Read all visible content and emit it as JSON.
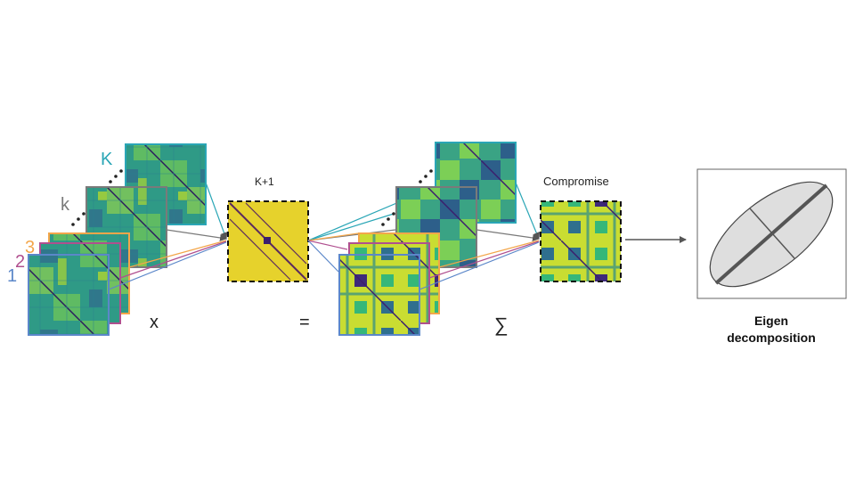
{
  "labels": {
    "index_1": "1",
    "index_2": "2",
    "index_3": "3",
    "index_k": "k",
    "index_K": "K",
    "weights_title": "K+1",
    "times_sign": "x",
    "equals_sign": "=",
    "sum_sign": "∑",
    "compromise_title": "Compromise",
    "eigen_line1": "Eigen",
    "eigen_line2": "decomposition"
  },
  "colors": {
    "stack_1": "#5b87c9",
    "stack_2": "#b04f8f",
    "stack_3": "#f3a64a",
    "stack_k": "#7a7a7a",
    "stack_K": "#2aa6b6",
    "weights_fill": "#e6d22c",
    "heat_low": "#3b2a73",
    "heat_mid": "#2a8c8a",
    "heat_high": "#d9df3a"
  },
  "icons": {
    "arrow": "right-arrow-icon",
    "ellipse": "pca-ellipse-icon",
    "ellipsis": "ellipsis-icon"
  }
}
